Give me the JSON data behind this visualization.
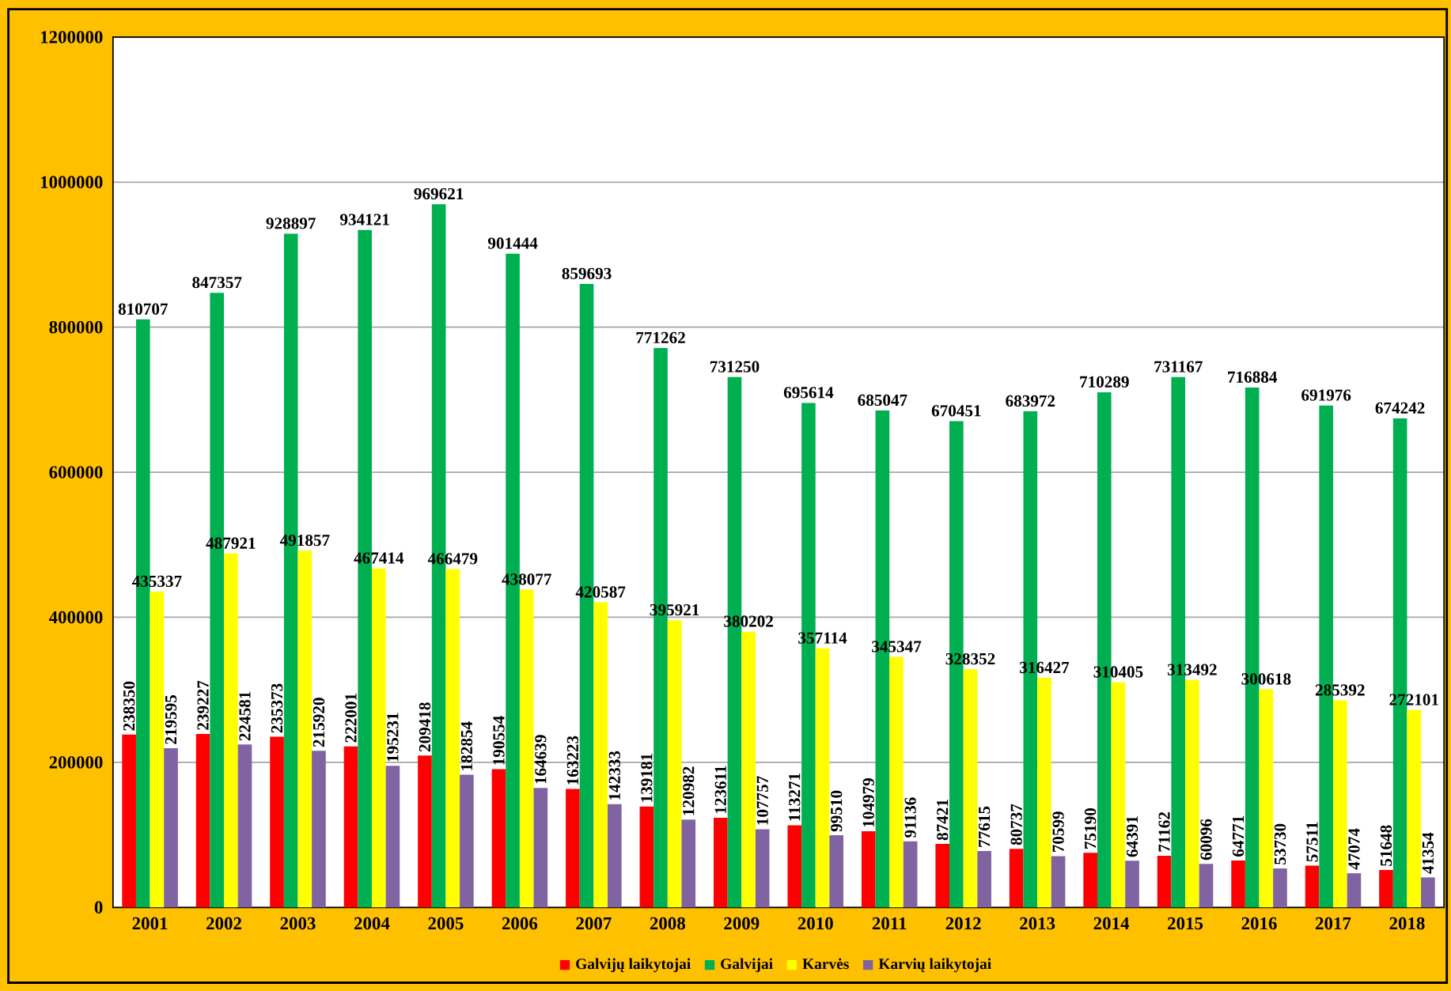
{
  "chart_data": {
    "type": "bar",
    "categories": [
      "2001",
      "2002",
      "2003",
      "2004",
      "2005",
      "2006",
      "2007",
      "2008",
      "2009",
      "2010",
      "2011",
      "2012",
      "2013",
      "2014",
      "2015",
      "2016",
      "2017",
      "2018"
    ],
    "series": [
      {
        "name": "Galvijų laikytojai",
        "color": "#ff0000",
        "values": [
          238350,
          239227,
          235373,
          222001,
          209418,
          190554,
          163223,
          139181,
          123611,
          113271,
          104979,
          87421,
          80737,
          75190,
          71162,
          64771,
          57511,
          51648
        ]
      },
      {
        "name": "Galvijai",
        "color": "#00b050",
        "values": [
          810707,
          847357,
          928897,
          934121,
          969621,
          901444,
          859693,
          771262,
          731250,
          695614,
          685047,
          670451,
          683972,
          710289,
          731167,
          716884,
          691976,
          674242
        ]
      },
      {
        "name": "Karvės",
        "color": "#ffff00",
        "values": [
          435337,
          487921,
          491857,
          467414,
          466479,
          438077,
          420587,
          395921,
          380202,
          357114,
          345347,
          328352,
          316427,
          310405,
          313492,
          300618,
          285392,
          272101
        ]
      },
      {
        "name": "Karvių laikytojai",
        "color": "#8064a2",
        "values": [
          219595,
          224581,
          215920,
          195231,
          182854,
          164639,
          142333,
          120982,
          107757,
          99510,
          91136,
          77615,
          70599,
          64391,
          60096,
          53730,
          47074,
          41354
        ]
      }
    ],
    "ylim": [
      0,
      1200000
    ],
    "yticks": [
      0,
      200000,
      400000,
      600000,
      800000,
      1000000,
      1200000
    ],
    "grid": "y",
    "legend": "bottom",
    "data_labels": true
  }
}
